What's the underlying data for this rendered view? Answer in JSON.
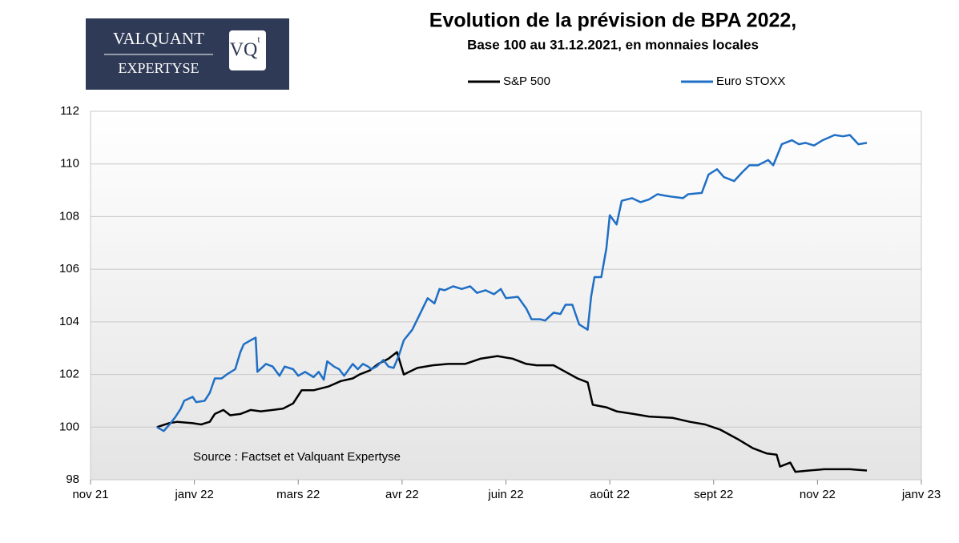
{
  "logo": {
    "line1": "VALQUANT",
    "line2": "EXPERTYSE",
    "mark": "VQ",
    "mark_sup": "t"
  },
  "chart_data": {
    "type": "line",
    "title": "Evolution de la prévision de BPA  2022,",
    "subtitle": "Base 100 au 31.12.2021, en monnaies locales",
    "annotation": "Source : Factset et Valquant Expertyse",
    "xlim": [
      0,
      488
    ],
    "xticks": [
      {
        "value": 0,
        "label": "nov 21"
      },
      {
        "value": 61,
        "label": "janv 22"
      },
      {
        "value": 122,
        "label": "mars 22"
      },
      {
        "value": 183,
        "label": "avr 22"
      },
      {
        "value": 244,
        "label": "juin 22"
      },
      {
        "value": 305,
        "label": "août 22"
      },
      {
        "value": 366,
        "label": "sept 22"
      },
      {
        "value": 427,
        "label": "nov 22"
      },
      {
        "value": 488,
        "label": "janv 23"
      }
    ],
    "ylim": [
      98,
      112
    ],
    "yticks": [
      98,
      100,
      102,
      104,
      106,
      108,
      110,
      112
    ],
    "grid": true,
    "legend": "top",
    "series": [
      {
        "name": "S&P 500",
        "color": "#000000",
        "x": [
          39,
          46,
          51,
          60,
          65,
          70,
          73,
          78,
          82,
          88,
          94,
          100,
          107,
          113,
          119,
          124,
          131,
          140,
          147,
          154,
          158,
          164,
          169,
          175,
          180,
          184,
          192,
          201,
          210,
          220,
          229,
          239,
          248,
          256,
          262,
          272,
          279,
          286,
          292,
          295,
          303,
          309,
          319,
          328,
          342,
          352,
          361,
          370,
          380,
          389,
          397,
          403,
          405,
          411,
          414,
          422,
          431,
          446,
          456
        ],
        "values": [
          100.0,
          100.15,
          100.2,
          100.15,
          100.1,
          100.2,
          100.5,
          100.65,
          100.45,
          100.5,
          100.65,
          100.6,
          100.65,
          100.7,
          100.9,
          101.4,
          101.4,
          101.55,
          101.75,
          101.85,
          102.0,
          102.15,
          102.4,
          102.6,
          102.85,
          102.0,
          102.25,
          102.35,
          102.4,
          102.4,
          102.6,
          102.7,
          102.6,
          102.4,
          102.35,
          102.35,
          102.1,
          101.85,
          101.7,
          100.85,
          100.75,
          100.6,
          100.5,
          100.4,
          100.35,
          100.2,
          100.1,
          99.9,
          99.55,
          99.2,
          99.0,
          98.95,
          98.5,
          98.65,
          98.3,
          98.35,
          98.4,
          98.4,
          98.35
        ]
      },
      {
        "name": "Euro STOXX",
        "color": "#1f6fc5",
        "x": [
          39,
          43,
          47,
          50,
          53,
          55,
          60,
          62,
          67,
          70,
          73,
          77,
          80,
          85,
          88,
          90,
          94,
          97,
          98,
          103,
          107,
          111,
          114,
          119,
          122,
          126,
          131,
          134,
          137,
          139,
          143,
          146,
          149,
          154,
          157,
          160,
          163,
          165,
          168,
          172,
          175,
          178,
          181,
          184,
          189,
          192,
          195,
          198,
          202,
          205,
          208,
          213,
          218,
          223,
          227,
          232,
          237,
          241,
          244,
          251,
          256,
          259,
          264,
          267,
          272,
          276,
          279,
          283,
          287,
          292,
          294,
          296,
          300,
          303,
          305,
          309,
          312,
          318,
          323,
          328,
          333,
          337,
          342,
          348,
          351,
          359,
          363,
          368,
          372,
          378,
          383,
          387,
          392,
          398,
          401,
          406,
          412,
          416,
          420,
          425,
          430,
          437,
          442,
          446,
          451,
          456
        ],
        "values": [
          100.0,
          99.85,
          100.15,
          100.4,
          100.7,
          101.0,
          101.15,
          100.95,
          101.0,
          101.3,
          101.85,
          101.85,
          102.0,
          102.2,
          102.85,
          103.15,
          103.3,
          103.4,
          102.1,
          102.4,
          102.3,
          101.95,
          102.3,
          102.2,
          101.95,
          102.1,
          101.9,
          102.1,
          101.8,
          102.5,
          102.3,
          102.2,
          101.95,
          102.4,
          102.2,
          102.4,
          102.3,
          102.2,
          102.3,
          102.55,
          102.3,
          102.25,
          102.7,
          103.3,
          103.7,
          104.1,
          104.5,
          104.9,
          104.7,
          105.25,
          105.2,
          105.35,
          105.25,
          105.35,
          105.1,
          105.2,
          105.05,
          105.25,
          104.9,
          104.95,
          104.5,
          104.1,
          104.1,
          104.05,
          104.35,
          104.3,
          104.65,
          104.65,
          103.9,
          103.7,
          104.95,
          105.7,
          105.7,
          106.8,
          108.05,
          107.7,
          108.6,
          108.7,
          108.55,
          108.65,
          108.85,
          108.8,
          108.75,
          108.7,
          108.85,
          108.9,
          109.6,
          109.8,
          109.5,
          109.35,
          109.7,
          109.95,
          109.95,
          110.15,
          109.95,
          110.75,
          110.9,
          110.75,
          110.8,
          110.7,
          110.9,
          111.1,
          111.05,
          111.1,
          110.75,
          110.8
        ]
      }
    ]
  }
}
